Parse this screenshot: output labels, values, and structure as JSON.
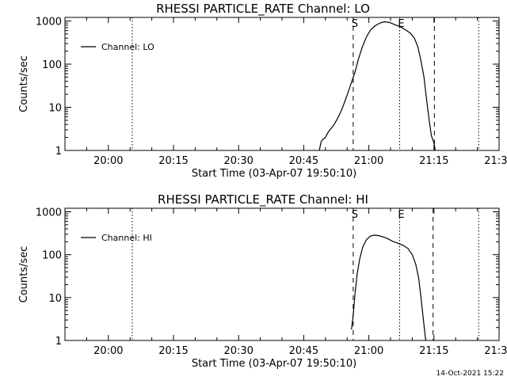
{
  "chart_data": [
    {
      "type": "line",
      "title": "RHESSI PARTICLE_RATE Channel: LO",
      "xlabel": "Start Time (03-Apr-07 19:50:10)",
      "ylabel": "Counts/sec",
      "yscale": "log",
      "ylim": [
        1,
        1000
      ],
      "xlim_minutes_from_1950": [
        0,
        100
      ],
      "x_ticks": [
        {
          "minute": 10,
          "label": "20:00"
        },
        {
          "minute": 25,
          "label": "20:15"
        },
        {
          "minute": 40,
          "label": "20:30"
        },
        {
          "minute": 55,
          "label": "20:45"
        },
        {
          "minute": 70,
          "label": "21:00"
        },
        {
          "minute": 85,
          "label": "21:15"
        },
        {
          "minute": 100,
          "label": "21:30"
        }
      ],
      "y_ticks": [
        {
          "value": 1,
          "label": "1"
        },
        {
          "value": 10,
          "label": "10"
        },
        {
          "value": 100,
          "label": "100"
        },
        {
          "value": 1000,
          "label": "1000"
        }
      ],
      "legend": {
        "position": "top-left",
        "entries": [
          "Channel: LO"
        ]
      },
      "markers": [
        {
          "minute": 66.4,
          "style": "dashed",
          "label": "S"
        },
        {
          "minute": 85.1,
          "style": "dashed",
          "label": ""
        },
        {
          "minute": 77.1,
          "style": "dotted",
          "label": "E"
        },
        {
          "minute": 15.5,
          "style": "dotted",
          "label": ""
        },
        {
          "minute": 95.3,
          "style": "dotted",
          "label": ""
        }
      ],
      "series": [
        {
          "name": "Channel: LO",
          "points": [
            [
              58.6,
              1
            ],
            [
              59.0,
              1.6
            ],
            [
              59.4,
              1.8
            ],
            [
              60.0,
              2.0
            ],
            [
              60.5,
              2.5
            ],
            [
              61.0,
              3.0
            ],
            [
              61.6,
              3.5
            ],
            [
              62.3,
              4.5
            ],
            [
              63.0,
              6
            ],
            [
              63.8,
              9
            ],
            [
              64.5,
              14
            ],
            [
              65.2,
              22
            ],
            [
              66.0,
              38
            ],
            [
              66.8,
              65
            ],
            [
              67.6,
              130
            ],
            [
              68.5,
              250
            ],
            [
              69.4,
              420
            ],
            [
              70.4,
              620
            ],
            [
              71.5,
              780
            ],
            [
              72.6,
              900
            ],
            [
              73.6,
              960
            ],
            [
              74.8,
              920
            ],
            [
              76.0,
              820
            ],
            [
              77.2,
              740
            ],
            [
              78.4,
              630
            ],
            [
              79.6,
              520
            ],
            [
              80.5,
              400
            ],
            [
              81.3,
              250
            ],
            [
              82.0,
              120
            ],
            [
              82.7,
              50
            ],
            [
              83.3,
              15
            ],
            [
              83.9,
              5
            ],
            [
              84.4,
              2.2
            ],
            [
              85.0,
              1.5
            ],
            [
              85.3,
              1
            ]
          ]
        }
      ]
    },
    {
      "type": "line",
      "title": "RHESSI PARTICLE_RATE Channel: HI",
      "xlabel": "Start Time (03-Apr-07 19:50:10)",
      "ylabel": "Counts/sec",
      "yscale": "log",
      "ylim": [
        1,
        1000
      ],
      "xlim_minutes_from_1950": [
        0,
        100
      ],
      "x_ticks": [
        {
          "minute": 10,
          "label": "20:00"
        },
        {
          "minute": 25,
          "label": "20:15"
        },
        {
          "minute": 40,
          "label": "20:30"
        },
        {
          "minute": 55,
          "label": "20:45"
        },
        {
          "minute": 70,
          "label": "21:00"
        },
        {
          "minute": 85,
          "label": "21:15"
        },
        {
          "minute": 100,
          "label": "21:30"
        }
      ],
      "y_ticks": [
        {
          "value": 1,
          "label": "1"
        },
        {
          "value": 10,
          "label": "10"
        },
        {
          "value": 100,
          "label": "100"
        },
        {
          "value": 1000,
          "label": "1000"
        }
      ],
      "legend": {
        "position": "top-left",
        "entries": [
          "Channel: HI"
        ]
      },
      "markers": [
        {
          "minute": 66.4,
          "style": "dashed",
          "label": "S"
        },
        {
          "minute": 84.8,
          "style": "dashed",
          "label": ""
        },
        {
          "minute": 77.1,
          "style": "dotted",
          "label": "E"
        },
        {
          "minute": 15.5,
          "style": "dotted",
          "label": ""
        },
        {
          "minute": 95.3,
          "style": "dotted",
          "label": ""
        }
      ],
      "series": [
        {
          "name": "Channel: HI",
          "points": [
            [
              66.0,
              1.8
            ],
            [
              66.4,
              4
            ],
            [
              66.8,
              12
            ],
            [
              67.3,
              35
            ],
            [
              67.9,
              80
            ],
            [
              68.6,
              150
            ],
            [
              69.4,
              220
            ],
            [
              70.3,
              270
            ],
            [
              71.2,
              285
            ],
            [
              72.2,
              280
            ],
            [
              73.3,
              260
            ],
            [
              74.4,
              235
            ],
            [
              75.5,
              205
            ],
            [
              76.7,
              185
            ],
            [
              77.9,
              165
            ],
            [
              79.0,
              140
            ],
            [
              80.0,
              100
            ],
            [
              80.8,
              60
            ],
            [
              81.5,
              28
            ],
            [
              82.0,
              10
            ],
            [
              82.5,
              3.5
            ],
            [
              82.9,
              1.5
            ],
            [
              83.1,
              1
            ]
          ]
        }
      ]
    }
  ],
  "footer": {
    "timestamp": "14-Oct-2021 15:22"
  }
}
